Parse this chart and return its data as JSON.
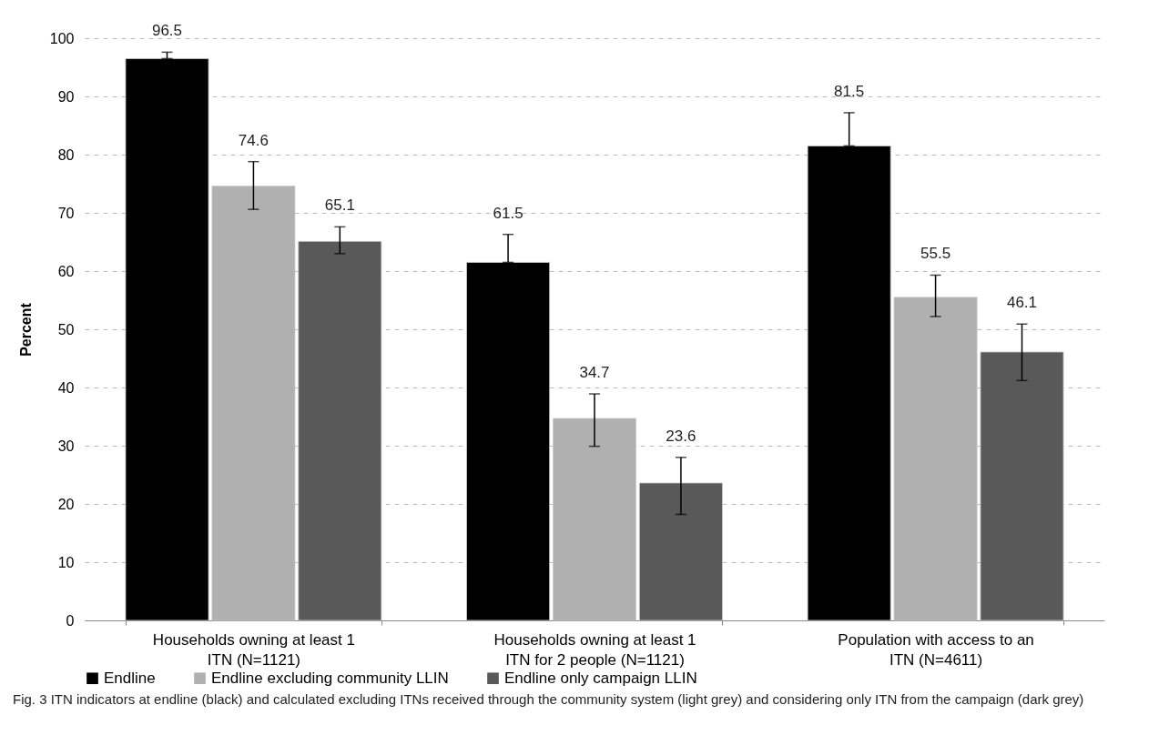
{
  "chart_data": {
    "type": "bar",
    "ylabel": "Percent",
    "categories": [
      "Households owning at least 1 ITN (N=1121)",
      "Households owning at least 1 ITN for 2 people (N=1121)",
      "Population with access to an ITN (N=4611)"
    ],
    "series": [
      {
        "name": "Endline",
        "color": "#000000",
        "values": [
          96.5,
          61.5,
          81.5
        ],
        "errors": [
          [
            96.5,
            97.6
          ],
          [
            61.5,
            66.3
          ],
          [
            81.5,
            87.2
          ]
        ]
      },
      {
        "name": "Endline excluding community LLIN",
        "color": "#b0b0b0",
        "values": [
          74.6,
          34.7,
          55.5
        ],
        "errors": [
          [
            70.6,
            78.8
          ],
          [
            29.9,
            38.9
          ],
          [
            52.2,
            59.3
          ]
        ]
      },
      {
        "name": "Endline only campaign LLIN",
        "color": "#595959",
        "values": [
          65.1,
          23.6,
          46.1
        ],
        "errors": [
          [
            63.0,
            67.6
          ],
          [
            18.2,
            28.0
          ],
          [
            41.2,
            50.9
          ]
        ]
      }
    ],
    "ylim": [
      0,
      100
    ],
    "yticks": [
      0,
      10,
      20,
      30,
      40,
      50,
      60,
      70,
      80,
      90,
      100
    ],
    "grid": "y",
    "legend": "bottom",
    "data_labels": true,
    "annotations": [
      "Fig. 3 ITN indicators at endline (black) and calculated excluding ITNs received through the community system (light grey) and considering only ITN from the campaign (dark grey)"
    ]
  }
}
